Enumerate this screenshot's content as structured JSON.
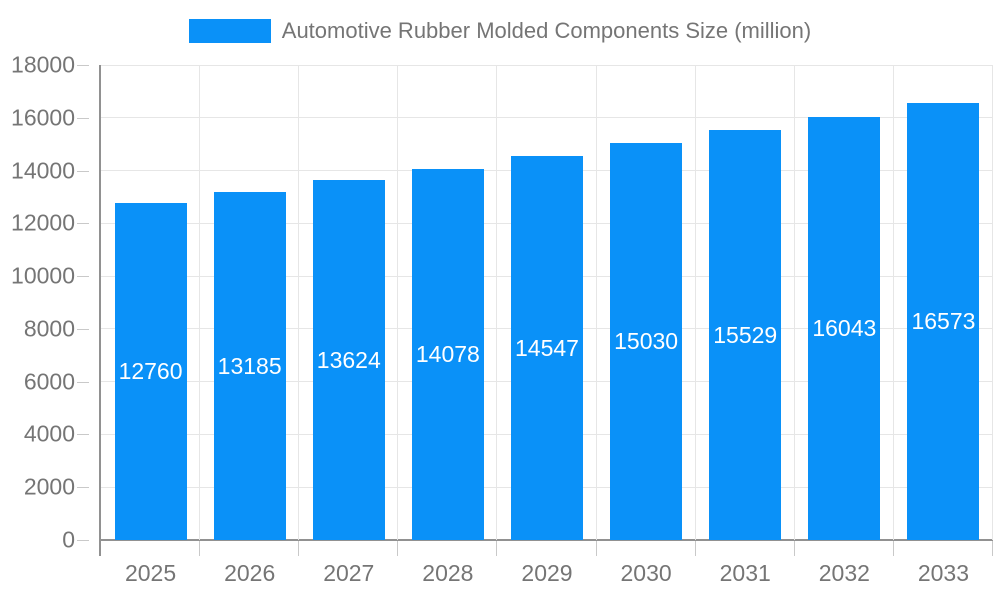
{
  "chart_data": {
    "type": "bar",
    "title": "",
    "legend": {
      "label": "Automotive Rubber Molded Components Size (million)",
      "position": "top-center"
    },
    "categories": [
      "2025",
      "2026",
      "2027",
      "2028",
      "2029",
      "2030",
      "2031",
      "2032",
      "2033"
    ],
    "values": [
      12760,
      13185,
      13624,
      14078,
      14547,
      15030,
      15529,
      16043,
      16573
    ],
    "xlabel": "",
    "ylabel": "",
    "ylim": [
      0,
      18000
    ],
    "ytick_step": 2000,
    "yticks": [
      0,
      2000,
      4000,
      6000,
      8000,
      10000,
      12000,
      14000,
      16000,
      18000
    ],
    "grid": true,
    "value_labels": "inside-bar-centered",
    "colors": {
      "bar": "#0a91f8",
      "bar_label_text": "#ffffff",
      "axis_text": "#757575",
      "legend_text": "#757575",
      "gridline": "#e6e6e6",
      "axis_line": "#919191",
      "tick": "#c9c9c9",
      "background": "#ffffff"
    }
  }
}
